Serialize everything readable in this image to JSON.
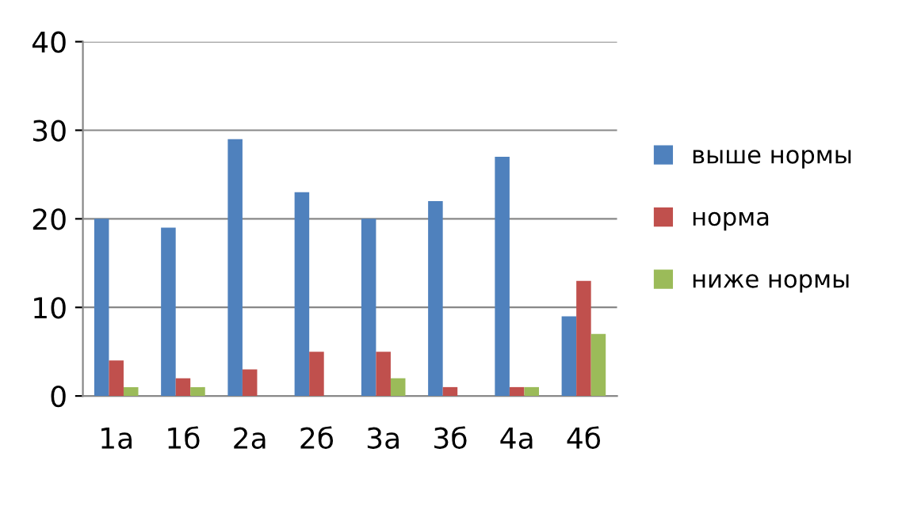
{
  "chart_data": {
    "type": "bar",
    "categories": [
      "1а",
      "1б",
      "2а",
      "2б",
      "3а",
      "3б",
      "4а",
      "4б"
    ],
    "series": [
      {
        "name": "выше нормы",
        "color": "#4f81bd",
        "values": [
          20,
          19,
          29,
          23,
          20,
          22,
          27,
          9
        ]
      },
      {
        "name": "норма",
        "color": "#c0504d",
        "values": [
          4,
          2,
          3,
          5,
          5,
          1,
          1,
          13
        ]
      },
      {
        "name": "ниже нормы",
        "color": "#9bbb59",
        "values": [
          1,
          1,
          0,
          0,
          2,
          0,
          1,
          7
        ]
      }
    ],
    "ylim": [
      0,
      40
    ],
    "yticks": [
      0,
      10,
      20,
      30,
      40
    ],
    "grid": "y",
    "legend": "right"
  }
}
